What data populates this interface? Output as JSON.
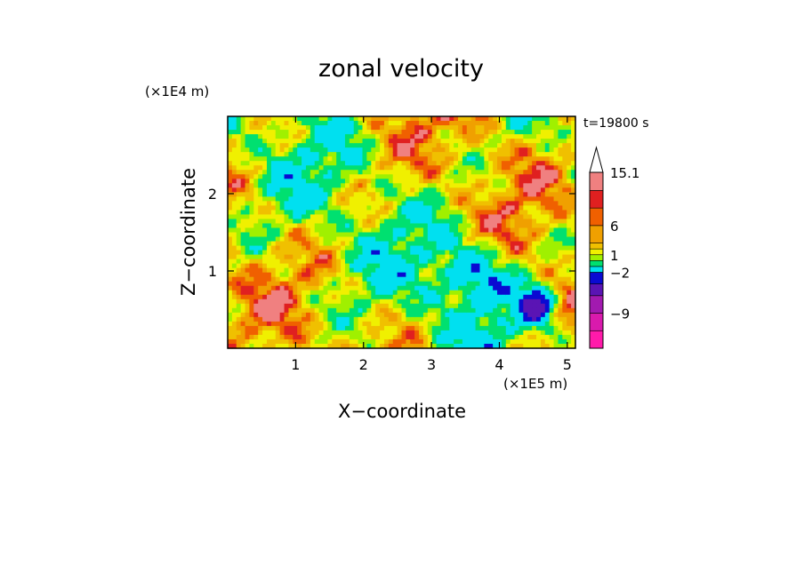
{
  "chart_data": {
    "type": "heatmap",
    "title": "zonal velocity",
    "xlabel": "X−coordinate",
    "ylabel": "Z−coordinate",
    "x_unit_label": "(×1E5 m)",
    "y_unit_label": "(×1E4 m)",
    "time_label": "t=19800 s",
    "xlim": [
      0,
      5.12
    ],
    "ylim": [
      0,
      3.0
    ],
    "x_ticks": [
      "1",
      "2",
      "3",
      "4",
      "5"
    ],
    "x_tick_values": [
      1,
      2,
      3,
      4,
      5
    ],
    "y_ticks": [
      "1",
      "2"
    ],
    "y_tick_values": [
      1,
      2
    ],
    "colorbar": {
      "labels": [
        "15.1",
        "6",
        "1",
        "−2",
        "−9"
      ],
      "label_values": [
        15.1,
        6,
        1,
        -2,
        -9
      ],
      "bins": [
        {
          "value": -15,
          "color": "#ff1aaa"
        },
        {
          "value": -12,
          "color": "#d91aad"
        },
        {
          "value": -9,
          "color": "#a21ab0"
        },
        {
          "value": -6,
          "color": "#5a14b4"
        },
        {
          "value": -4,
          "color": "#0a0ad2"
        },
        {
          "value": -2,
          "color": "#00e0f0"
        },
        {
          "value": -1,
          "color": "#00e070"
        },
        {
          "value": 0,
          "color": "#a0f000"
        },
        {
          "value": 1,
          "color": "#f0f000"
        },
        {
          "value": 2,
          "color": "#f0c000"
        },
        {
          "value": 3,
          "color": "#f0a000"
        },
        {
          "value": 6,
          "color": "#f06000"
        },
        {
          "value": 9,
          "color": "#e02020"
        },
        {
          "value": 12,
          "color": "#f08080"
        },
        {
          "value": 15.1,
          "color": "#f8c0c0"
        }
      ]
    }
  }
}
